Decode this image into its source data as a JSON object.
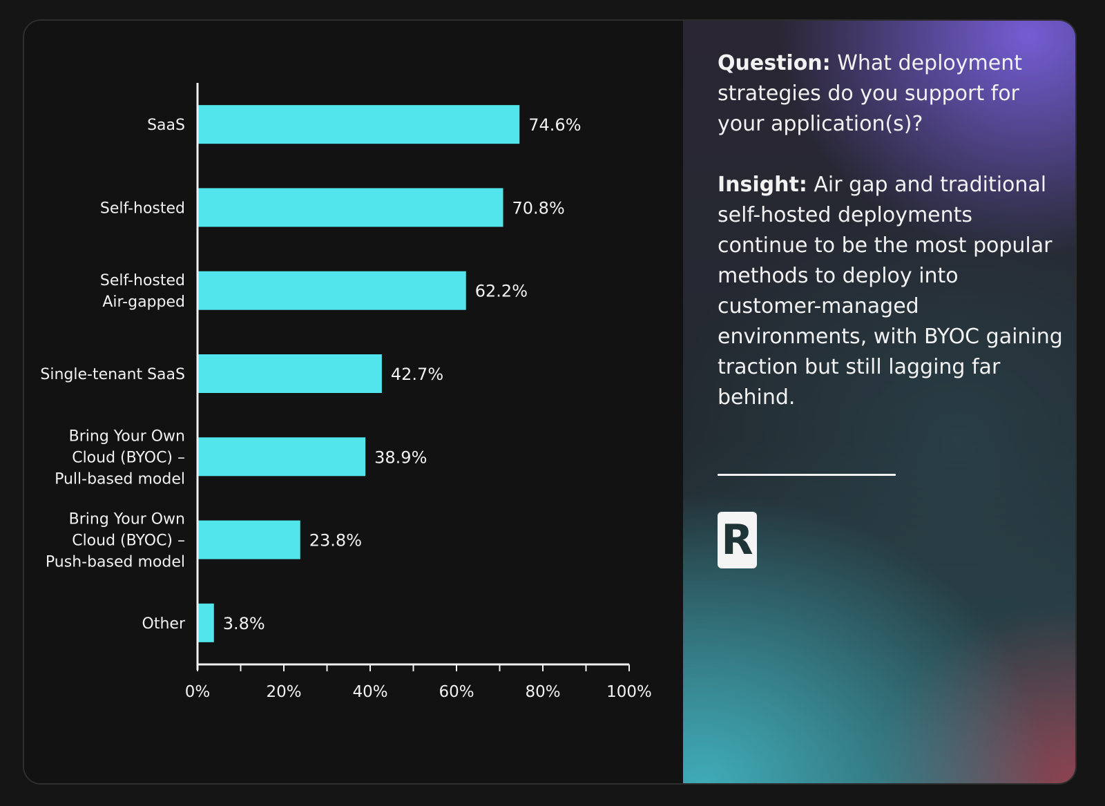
{
  "chart_data": {
    "type": "bar",
    "orientation": "horizontal",
    "categories": [
      [
        "SaaS"
      ],
      [
        "Self-hosted"
      ],
      [
        "Self-hosted",
        "Air-gapped"
      ],
      [
        "Single-tenant SaaS"
      ],
      [
        "Bring Your Own",
        "Cloud (BYOC) –",
        "Pull-based model"
      ],
      [
        "Bring Your Own",
        "Cloud (BYOC) –",
        "Push-based model"
      ],
      [
        "Other"
      ]
    ],
    "values": [
      74.6,
      70.8,
      62.2,
      42.7,
      38.9,
      23.8,
      3.8
    ],
    "value_labels": [
      "74.6%",
      "70.8%",
      "62.2%",
      "42.7%",
      "38.9%",
      "23.8%",
      "3.8%"
    ],
    "xlim": [
      0,
      100
    ],
    "x_ticks": [
      "0%",
      "20%",
      "40%",
      "60%",
      "80%",
      "100%"
    ],
    "grid": false,
    "bar_color": "#52e5ec",
    "title": "",
    "xlabel": "",
    "ylabel": ""
  },
  "info": {
    "question_label": "Question:",
    "question_text": " What deployment strategies do you support for your application(s)?",
    "insight_label": "Insight:",
    "insight_text": " Air gap and traditional self-hosted deployments continue to be the most popular methods to deploy into customer-managed environments, with BYOC gaining traction but still lagging far behind."
  },
  "logo": {
    "letter": "R",
    "icon": "r-logo-icon"
  },
  "colors": {
    "background": "#151515",
    "chart_bg": "#121212",
    "bar": "#52e5ec",
    "text": "#f2f2f2"
  }
}
